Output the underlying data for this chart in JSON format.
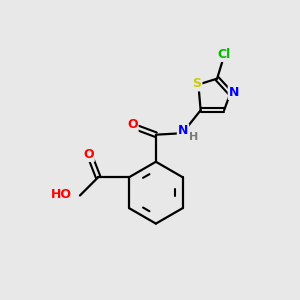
{
  "background_color": "#e8e8e8",
  "bond_color": "#000000",
  "atom_colors": {
    "O": "#ff0000",
    "N": "#0000ff",
    "S": "#cccc00",
    "Cl": "#00bb00",
    "C": "#000000",
    "H": "#7a7a7a"
  },
  "figsize": [
    3.0,
    3.0
  ],
  "dpi": 100
}
